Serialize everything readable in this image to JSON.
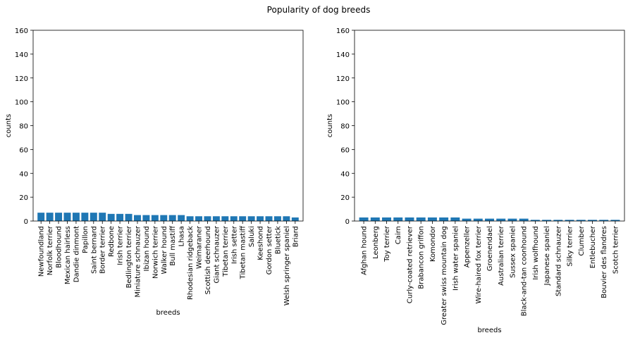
{
  "figure": {
    "title": "Popularity of dog breeds"
  },
  "chart_data": [
    {
      "type": "bar",
      "xlabel": "breeds",
      "ylabel": "counts",
      "ylim": [
        0,
        160
      ],
      "yticks": [
        0,
        20,
        40,
        60,
        80,
        100,
        120,
        140,
        160
      ],
      "grid": false,
      "bar_color": "#1f77b4",
      "categories": [
        "Newfoundland",
        "Norfolk terrier",
        "Bloodhound",
        "Mexican hairless",
        "Dandie dinmont",
        "Papillon",
        "Saint bernard",
        "Border terrier",
        "Redbone",
        "Irish terrier",
        "Bedlington terrier",
        "Miniature schnauzer",
        "Ibizan hound",
        "Norwich terrier",
        "Walker hound",
        "Bull mastiff",
        "Lhasa",
        "Rhodesian ridgeback",
        "Weimaraner",
        "Scottish deerhound",
        "Giant schnauzer",
        "Tibetan terrier",
        "Irish setter",
        "Tibetan mastiff",
        "Saluki",
        "Keeshond",
        "Gordon setter",
        "Bluetick",
        "Welsh springer spaniel",
        "Briard"
      ],
      "values": [
        7,
        7,
        7,
        7,
        7,
        7,
        7,
        7,
        6,
        6,
        6,
        5,
        5,
        5,
        5,
        5,
        5,
        4,
        4,
        4,
        4,
        4,
        4,
        4,
        4,
        4,
        4,
        4,
        4,
        3
      ]
    },
    {
      "type": "bar",
      "xlabel": "breeds",
      "ylabel": "counts",
      "ylim": [
        0,
        160
      ],
      "yticks": [
        0,
        20,
        40,
        60,
        80,
        100,
        120,
        140,
        160
      ],
      "grid": false,
      "bar_color": "#1f77b4",
      "categories": [
        "Afghan hound",
        "Leonberg",
        "Toy terrier",
        "Cairn",
        "Curly-coated retriever",
        "Brabancon griffon",
        "Komondor",
        "Greater swiss mountain dog",
        "Irish water spaniel",
        "Appenzeller",
        "Wire-haired fox terrier",
        "Groenendael",
        "Australian terrier",
        "Sussex spaniel",
        "Black-and-tan coonhound",
        "Irish wolfhound",
        "Japanese spaniel",
        "Standard schnauzer",
        "Silky terrier",
        "Clumber",
        "Entlebucher",
        "Bouvier des flandres",
        "Scotch terrier"
      ],
      "values": [
        3,
        3,
        3,
        3,
        3,
        3,
        3,
        3,
        3,
        2,
        2,
        2,
        2,
        2,
        2,
        1,
        1,
        1,
        1,
        1,
        1,
        1,
        1
      ]
    }
  ]
}
